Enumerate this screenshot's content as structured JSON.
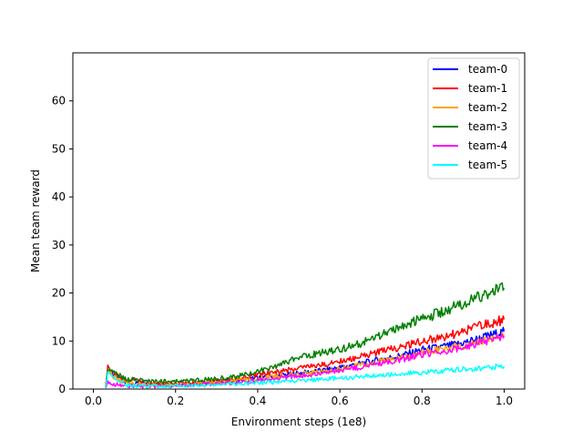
{
  "chart_data": {
    "type": "line",
    "title": "",
    "xlabel": "Environment steps (1e8)",
    "ylabel": "Mean team reward",
    "xlim": [
      -0.05,
      1.05
    ],
    "ylim": [
      0,
      70
    ],
    "xticks": [
      0.0,
      0.2,
      0.4,
      0.6,
      0.8,
      1.0
    ],
    "xtick_labels": [
      "0.0",
      "0.2",
      "0.4",
      "0.6",
      "0.8",
      "1.0"
    ],
    "yticks": [
      0,
      10,
      20,
      30,
      40,
      50,
      60
    ],
    "ytick_labels": [
      "0",
      "10",
      "20",
      "30",
      "40",
      "50",
      "60"
    ],
    "grid": false,
    "legend_position": "top-right",
    "colors": {
      "team-0": "#0000ff",
      "team-1": "#ff0000",
      "team-2": "#ffa500",
      "team-3": "#008000",
      "team-4": "#ff00ff",
      "team-5": "#00ffff"
    },
    "series": [
      {
        "name": "team-0",
        "color": "#0000ff",
        "x": [
          0.03,
          0.035,
          0.05,
          0.08,
          0.1,
          0.12,
          0.15,
          0.2,
          0.25,
          0.3,
          0.35,
          0.4,
          0.45,
          0.5,
          0.55,
          0.6,
          0.65,
          0.7,
          0.75,
          0.8,
          0.85,
          0.9,
          0.95,
          1.0
        ],
        "y": [
          0.5,
          4.8,
          3.0,
          1.3,
          1.2,
          1.1,
          1.0,
          1.0,
          1.2,
          1.5,
          1.8,
          2.3,
          2.8,
          3.3,
          3.8,
          4.5,
          5.3,
          6.2,
          7.0,
          8.2,
          8.8,
          9.6,
          10.8,
          12.0
        ]
      },
      {
        "name": "team-1",
        "color": "#ff0000",
        "x": [
          0.03,
          0.035,
          0.05,
          0.08,
          0.1,
          0.12,
          0.15,
          0.2,
          0.25,
          0.3,
          0.35,
          0.4,
          0.45,
          0.5,
          0.55,
          0.6,
          0.65,
          0.7,
          0.75,
          0.8,
          0.85,
          0.9,
          0.95,
          1.0
        ],
        "y": [
          0.5,
          4.5,
          3.0,
          1.8,
          2.0,
          1.5,
          1.2,
          1.1,
          1.3,
          1.7,
          2.2,
          3.0,
          3.7,
          4.3,
          5.0,
          5.8,
          6.7,
          7.8,
          8.8,
          10.0,
          10.8,
          12.0,
          13.3,
          14.5
        ]
      },
      {
        "name": "team-2",
        "color": "#ffa500",
        "x": [
          0.03,
          0.035,
          0.05,
          0.08,
          0.1,
          0.12,
          0.15,
          0.2,
          0.25,
          0.3,
          0.35,
          0.4,
          0.45,
          0.5,
          0.55,
          0.6,
          0.65,
          0.7,
          0.75,
          0.8,
          0.85,
          0.9,
          0.95,
          1.0
        ],
        "y": [
          0.5,
          4.0,
          2.5,
          1.2,
          1.1,
          1.0,
          0.9,
          0.9,
          1.1,
          1.4,
          1.7,
          2.2,
          2.7,
          3.1,
          3.6,
          4.2,
          5.0,
          5.8,
          6.6,
          7.6,
          8.3,
          9.0,
          10.2,
          11.3
        ]
      },
      {
        "name": "team-3",
        "color": "#008000",
        "x": [
          0.03,
          0.035,
          0.05,
          0.08,
          0.1,
          0.12,
          0.15,
          0.2,
          0.25,
          0.3,
          0.35,
          0.4,
          0.45,
          0.5,
          0.55,
          0.6,
          0.65,
          0.7,
          0.75,
          0.8,
          0.85,
          0.9,
          0.95,
          1.0
        ],
        "y": [
          0.5,
          4.2,
          3.5,
          2.0,
          2.0,
          1.8,
          1.6,
          1.6,
          1.8,
          2.2,
          2.7,
          3.6,
          5.0,
          6.5,
          7.5,
          8.3,
          9.5,
          11.2,
          13.0,
          14.8,
          16.0,
          17.8,
          19.5,
          21.0
        ]
      },
      {
        "name": "team-4",
        "color": "#ff00ff",
        "x": [
          0.03,
          0.035,
          0.05,
          0.08,
          0.1,
          0.12,
          0.15,
          0.2,
          0.25,
          0.3,
          0.35,
          0.4,
          0.45,
          0.5,
          0.55,
          0.6,
          0.65,
          0.7,
          0.75,
          0.8,
          0.85,
          0.9,
          0.95,
          1.0
        ],
        "y": [
          0.2,
          1.5,
          1.0,
          0.6,
          0.6,
          0.6,
          0.6,
          0.7,
          0.9,
          1.1,
          1.4,
          1.8,
          2.3,
          2.8,
          3.2,
          3.8,
          4.6,
          5.4,
          6.2,
          7.2,
          7.9,
          8.7,
          9.8,
          11.0
        ]
      },
      {
        "name": "team-5",
        "color": "#00ffff",
        "x": [
          0.03,
          0.035,
          0.05,
          0.08,
          0.1,
          0.12,
          0.15,
          0.2,
          0.25,
          0.3,
          0.35,
          0.4,
          0.45,
          0.5,
          0.55,
          0.6,
          0.65,
          0.7,
          0.75,
          0.8,
          0.85,
          0.9,
          0.95,
          1.0
        ],
        "y": [
          0.3,
          3.5,
          2.5,
          0.8,
          0.7,
          0.6,
          0.6,
          0.6,
          0.7,
          0.9,
          1.1,
          1.3,
          1.5,
          1.8,
          2.0,
          2.3,
          2.6,
          2.9,
          3.2,
          3.5,
          3.8,
          4.1,
          4.4,
          4.8
        ]
      }
    ]
  }
}
